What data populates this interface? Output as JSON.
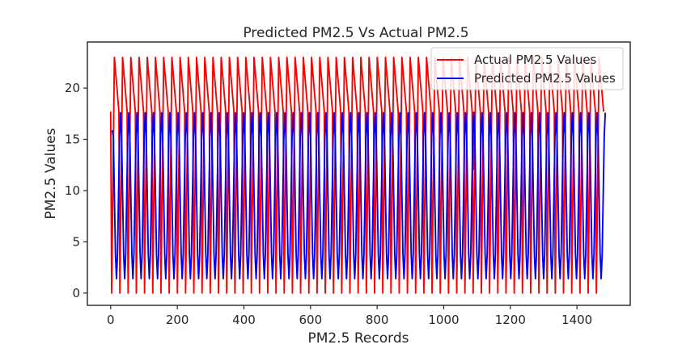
{
  "chart_data": {
    "type": "line",
    "title": "Predicted PM2.5  Vs Actual PM2.5",
    "xlabel": "PM2.5 Records",
    "ylabel": "PM2.5 Values",
    "xlim": [
      -70,
      1560
    ],
    "ylim": [
      -1.2,
      24.5
    ],
    "xticks": [
      0,
      200,
      400,
      600,
      800,
      1000,
      1200,
      1400
    ],
    "yticks": [
      0,
      5,
      10,
      15,
      20
    ],
    "grid": false,
    "legend_position": "top-right",
    "series": [
      {
        "name": "Actual PM2.5 Values",
        "color": "#ff0000",
        "cycles": 60,
        "x_end": 1480,
        "low": 0.0,
        "high": 23.0,
        "anomalies": [
          {
            "x": 1090,
            "y": 12.0
          }
        ]
      },
      {
        "name": "Predicted PM2.5 Values",
        "color": "#0000ff",
        "cycles": 60,
        "x_start": 5,
        "x_end": 1485,
        "low": 1.4,
        "high": 17.6,
        "start_value": 15.9
      }
    ]
  }
}
